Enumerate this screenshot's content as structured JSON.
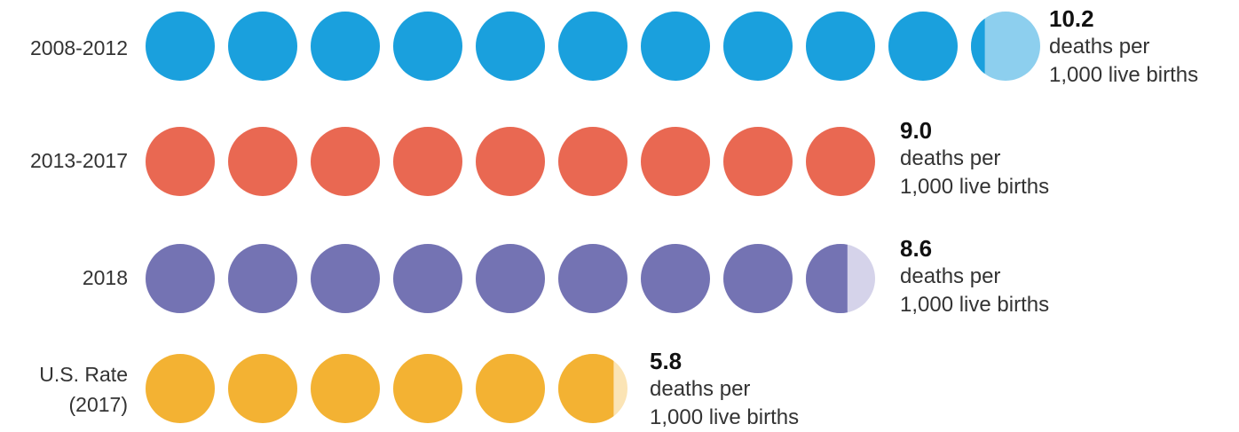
{
  "chart_data": {
    "type": "pictogram",
    "units_per_dot": 1,
    "unit_text": [
      "deaths per",
      "1,000 live births"
    ],
    "series": [
      {
        "label": "2008-2012",
        "value": 10.2,
        "color": "#1aa0dd",
        "partial_color": "#8dcfee"
      },
      {
        "label": "2013-2017",
        "value": 9.0,
        "color": "#e96852",
        "partial_color": "#f4b3a8"
      },
      {
        "label": "2018",
        "value": 8.6,
        "color": "#7473b3",
        "partial_color": "#d5d3ea"
      },
      {
        "label": "U.S. Rate\n(2017)",
        "value": 5.8,
        "color": "#f3b233",
        "partial_color": "#fbe4b5"
      }
    ]
  }
}
